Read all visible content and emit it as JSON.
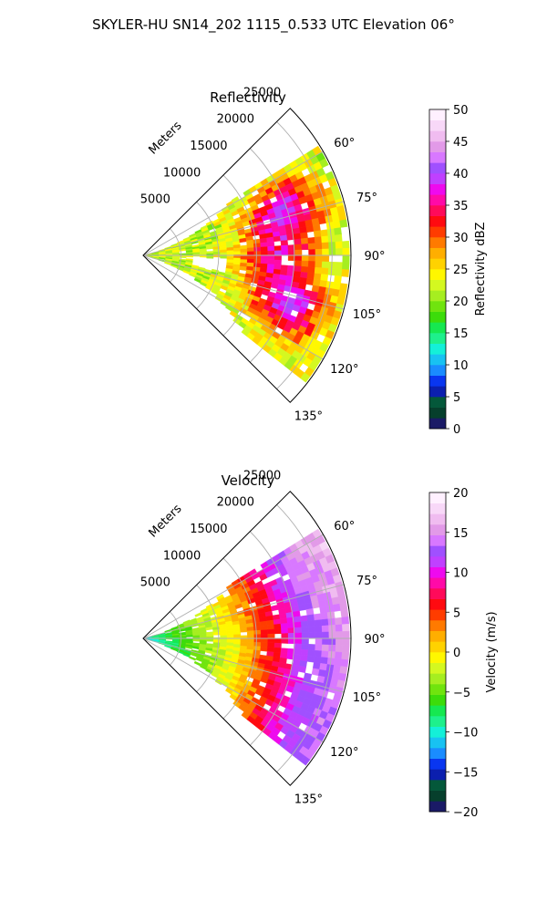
{
  "figure": {
    "title": "SKYLER-HU  SN14_202  1115_0.533 UTC Elevation 06°"
  },
  "chart_data": [
    {
      "type": "heatmap",
      "title": "Reflectivity",
      "projection": "polar sector",
      "radial_label": "Meters",
      "radial_ticks": [
        5000,
        10000,
        15000,
        20000,
        25000
      ],
      "radial_tick_labels": [
        "5000",
        "10000",
        "15000",
        "20000",
        "25000"
      ],
      "rlim": [
        0,
        27500
      ],
      "angle_ticks": [
        60,
        75,
        90,
        105,
        120,
        135
      ],
      "angle_tick_labels": [
        "60°",
        "75°",
        "90°",
        "105°",
        "120°",
        "135°"
      ],
      "angle_range_deg": [
        45,
        135
      ],
      "grid": true,
      "colorbar": {
        "label": "Reflectivity dBZ",
        "range": [
          0,
          50
        ],
        "ticks": [
          0,
          5,
          10,
          15,
          20,
          25,
          30,
          35,
          40,
          45,
          50
        ],
        "tick_labels": [
          "0",
          "5",
          "10",
          "15",
          "20",
          "25",
          "30",
          "35",
          "40",
          "45",
          "50"
        ],
        "colors": [
          "#1a1a66",
          "#063f2c",
          "#04583a",
          "#0b1fae",
          "#0936f0",
          "#1a8cff",
          "#18c2f2",
          "#14f0d8",
          "#1ef08c",
          "#16e850",
          "#3cdc0a",
          "#70e40e",
          "#a6ee20",
          "#d4f820",
          "#fff700",
          "#ffd200",
          "#ffae00",
          "#ff7a00",
          "#ff3c00",
          "#ff0a10",
          "#ff0a5a",
          "#ff0aa8",
          "#ee0aee",
          "#c040ff",
          "#a050ff",
          "#d878ff",
          "#e29ae8",
          "#f0bcf0",
          "#f8d8f8",
          "#fff0ff"
        ]
      },
      "data_summary": {
        "echo_range_m": [
          0,
          27000
        ],
        "azimuth_extent_deg": [
          58,
          132
        ],
        "core_cells": [
          {
            "azimuth_deg": 72,
            "range_m": 19000,
            "dbz": 38
          },
          {
            "azimuth_deg": 108,
            "range_m": 20000,
            "dbz": 38
          },
          {
            "azimuth_deg": 90,
            "range_m": 17000,
            "dbz": 33
          }
        ],
        "background_dbz": 22
      }
    },
    {
      "type": "heatmap",
      "title": "Velocity",
      "projection": "polar sector",
      "radial_label": "Meters",
      "radial_ticks": [
        5000,
        10000,
        15000,
        20000,
        25000
      ],
      "radial_tick_labels": [
        "5000",
        "10000",
        "15000",
        "20000",
        "25000"
      ],
      "rlim": [
        0,
        27500
      ],
      "angle_ticks": [
        60,
        75,
        90,
        105,
        120,
        135
      ],
      "angle_tick_labels": [
        "60°",
        "75°",
        "90°",
        "105°",
        "120°",
        "135°"
      ],
      "angle_range_deg": [
        45,
        135
      ],
      "grid": true,
      "colorbar": {
        "label": "Velocity (m/s)",
        "range": [
          -20,
          20
        ],
        "ticks": [
          -20,
          -15,
          -10,
          -5,
          0,
          5,
          10,
          15,
          20
        ],
        "tick_labels": [
          "−20",
          "−15",
          "−10",
          "−5",
          "0",
          "5",
          "10",
          "15",
          "20"
        ],
        "colors": [
          "#1a1a66",
          "#063f2c",
          "#04583a",
          "#0b1fae",
          "#0936f0",
          "#1a8cff",
          "#18c2f2",
          "#14f0d8",
          "#1ef08c",
          "#16e850",
          "#3cdc0a",
          "#70e40e",
          "#a6ee20",
          "#d4f820",
          "#fff700",
          "#ffd200",
          "#ffae00",
          "#ff7a00",
          "#ff3c00",
          "#ff0a10",
          "#ff0a5a",
          "#ff0aa8",
          "#ee0aee",
          "#c040ff",
          "#a050ff",
          "#d878ff",
          "#e29ae8",
          "#f0bcf0",
          "#f8d8f8",
          "#fff0ff"
        ]
      },
      "data_summary": {
        "echo_range_m": [
          0,
          27000
        ],
        "azimuth_extent_deg": [
          58,
          132
        ],
        "near_field_velocity_ms": -10,
        "gradient": [
          {
            "range_m": 6000,
            "velocity_ms": -5
          },
          {
            "range_m": 12000,
            "velocity_ms": 0
          },
          {
            "range_m": 18000,
            "velocity_ms": 8
          },
          {
            "range_m": 22000,
            "velocity_ms": 13
          },
          {
            "range_m": 26000,
            "velocity_ms": 15
          }
        ]
      }
    }
  ]
}
